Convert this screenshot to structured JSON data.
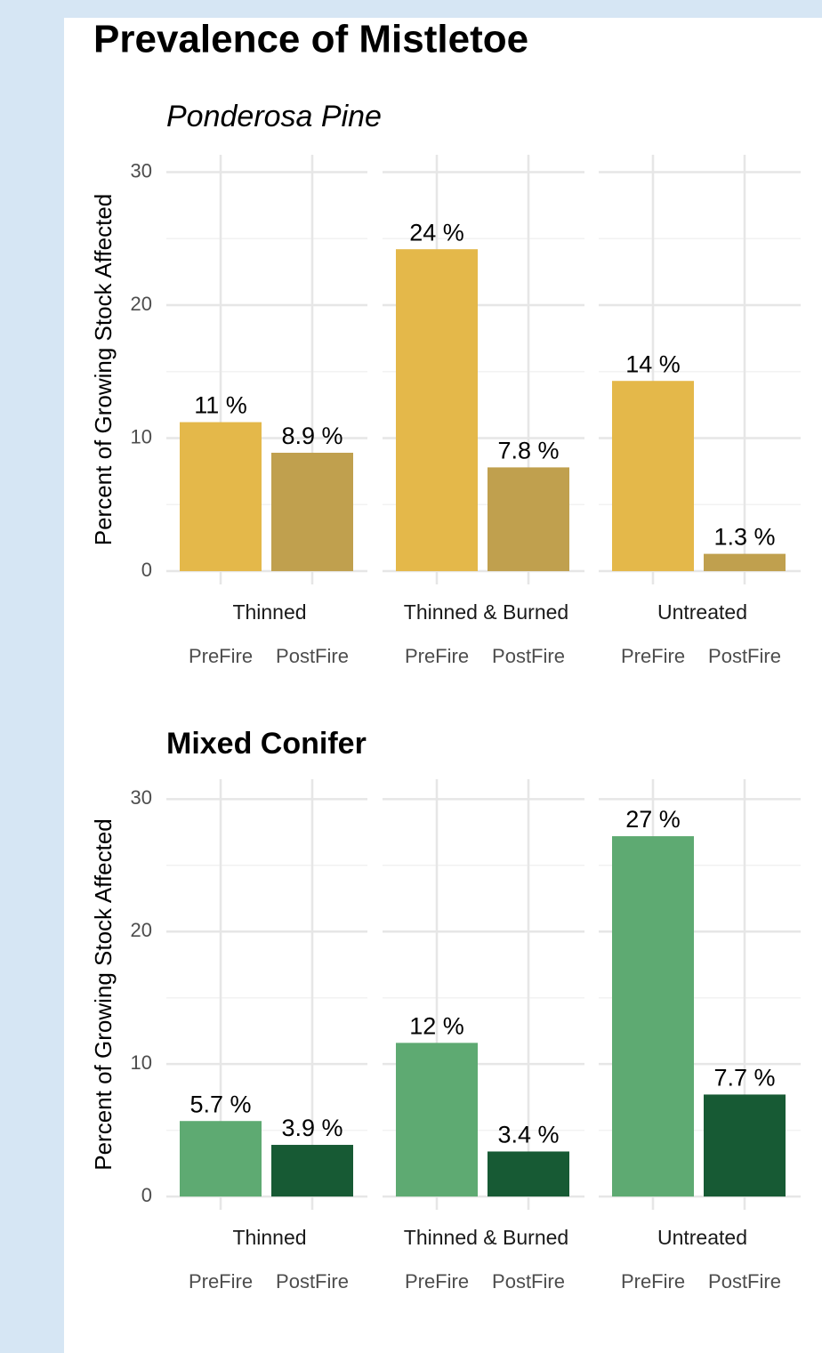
{
  "title": "Prevalence of Mistletoe",
  "chart_data": [
    {
      "type": "bar",
      "title": "Ponderosa Pine",
      "ylabel": "Percent of Growing Stock Affected",
      "categories": [
        "Thinned",
        "Thinned & Burned",
        "Untreated"
      ],
      "series": [
        {
          "name": "PreFire",
          "color": "#e4b84a",
          "values": [
            11.2,
            24.2,
            14.3
          ],
          "value_labels": [
            "11 %",
            "24 %",
            "14 %"
          ]
        },
        {
          "name": "PostFire",
          "color": "#c0a04e",
          "values": [
            8.9,
            7.8,
            1.3
          ],
          "value_labels": [
            "8.9 %",
            "7.8 %",
            "1.3 %"
          ]
        }
      ],
      "ylim": [
        -1,
        31.3
      ],
      "yticks": [
        0,
        10,
        20,
        30
      ],
      "minor_yticks": [
        5,
        15,
        25
      ],
      "grid": true
    },
    {
      "type": "bar",
      "title": "Mixed Conifer",
      "ylabel": "Percent of Growing Stock Affected",
      "categories": [
        "Thinned",
        "Thinned & Burned",
        "Untreated"
      ],
      "series": [
        {
          "name": "PreFire",
          "color": "#5eaa72",
          "values": [
            5.7,
            11.6,
            27.2
          ],
          "value_labels": [
            "5.7 %",
            "12 %",
            "27 %"
          ]
        },
        {
          "name": "PostFire",
          "color": "#175a34",
          "values": [
            3.9,
            3.4,
            7.7
          ],
          "value_labels": [
            "3.9 %",
            "3.4 %",
            "7.7 %"
          ]
        }
      ],
      "ylim": [
        -1,
        31.5
      ],
      "yticks": [
        0,
        10,
        20,
        30
      ],
      "minor_yticks": [
        5,
        15,
        25
      ],
      "grid": true
    }
  ]
}
